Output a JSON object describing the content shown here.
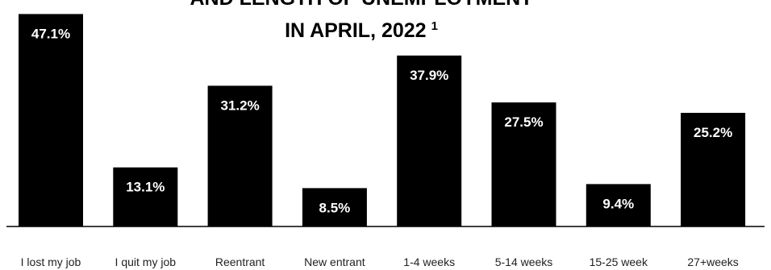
{
  "chart_data": {
    "type": "bar",
    "title_lines": [
      "AND LENGTH OF UNEMPLOYMENT",
      "IN APRIL, 2022"
    ],
    "footnote_marker": "1",
    "categories": [
      "I lost my job",
      "I quit my job",
      "Reentrant",
      "New entrant",
      "1-4 weeks",
      "5-14 weeks",
      "15-25 week",
      "27+weeks"
    ],
    "values": [
      47.1,
      13.1,
      31.2,
      8.5,
      37.9,
      27.5,
      9.4,
      25.2
    ],
    "value_labels": [
      "47.1%",
      "13.1%",
      "31.2%",
      "8.5%",
      "37.9%",
      "27.5%",
      "9.4%",
      "25.2%"
    ],
    "ylim": [
      0,
      49.5
    ],
    "grid": false,
    "bar_color": "#000000",
    "label_color": "#ffffff"
  }
}
